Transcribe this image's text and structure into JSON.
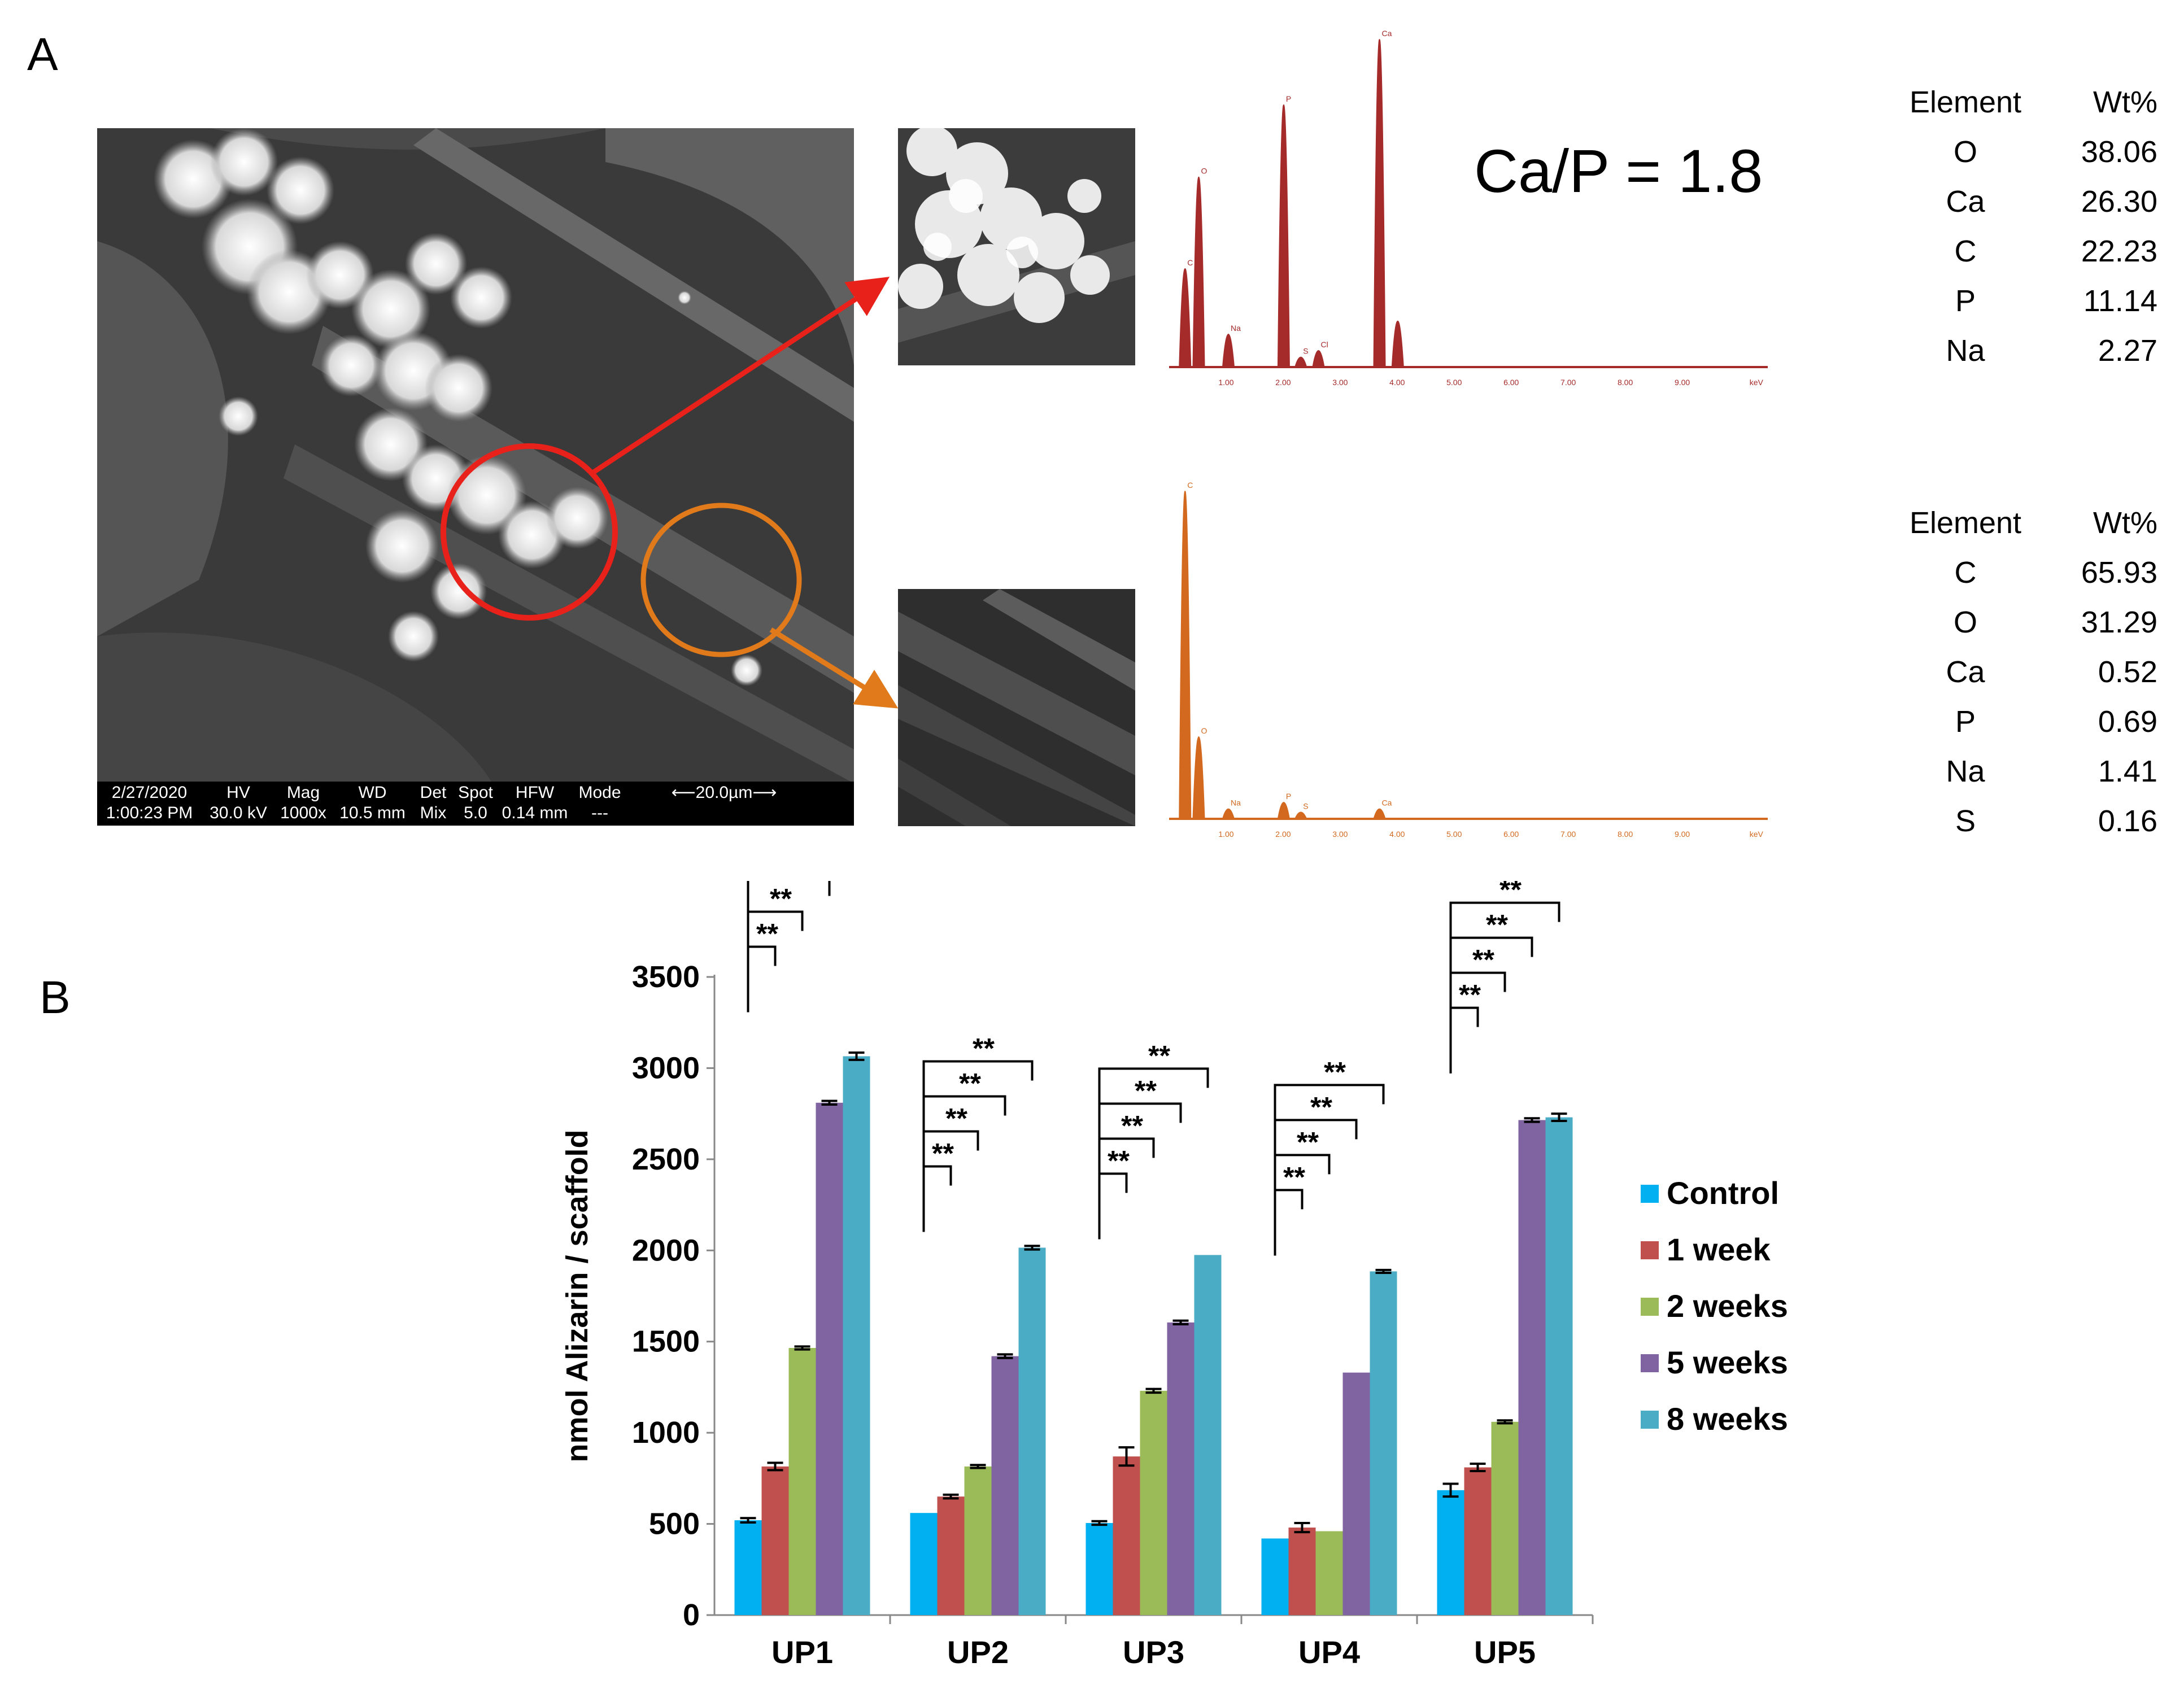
{
  "panel_a": {
    "letter": "A",
    "sem": {
      "info_bar": [
        {
          "top": "2/27/2020",
          "bottom": "1:00:23 PM"
        },
        {
          "top": "HV",
          "bottom": "30.0 kV"
        },
        {
          "top": "Mag",
          "bottom": "1000x"
        },
        {
          "top": "WD",
          "bottom": "10.5 mm"
        },
        {
          "top": "Det",
          "bottom": "Mix"
        },
        {
          "top": "Spot",
          "bottom": "5.0"
        },
        {
          "top": "HFW",
          "bottom": "0.14 mm"
        },
        {
          "top": "Mode",
          "bottom": "---"
        },
        {
          "top": "⟵20.0µm⟶",
          "bottom": ""
        }
      ]
    },
    "ratio_text": "Ca/P = 1.8",
    "spectra": [
      {
        "color": "#a52a2a",
        "x_ticks": [
          "1.00",
          "2.00",
          "3.00",
          "4.00",
          "5.00",
          "6.00",
          "7.00",
          "8.00",
          "9.00",
          "keV"
        ],
        "peaks": [
          {
            "label": "C",
            "kev": 0.28,
            "height": 0.3
          },
          {
            "label": "O",
            "kev": 0.52,
            "height": 0.58
          },
          {
            "label": "Na",
            "kev": 1.04,
            "height": 0.1
          },
          {
            "label": "P",
            "kev": 2.01,
            "height": 0.8
          },
          {
            "label": "S",
            "kev": 2.31,
            "height": 0.03
          },
          {
            "label": "Cl",
            "kev": 2.62,
            "height": 0.05
          },
          {
            "label": "Ca",
            "kev": 3.69,
            "height": 1.0
          },
          {
            "label": "",
            "kev": 4.01,
            "height": 0.14
          }
        ]
      },
      {
        "color": "#d2691e",
        "x_ticks": [
          "1.00",
          "2.00",
          "3.00",
          "4.00",
          "5.00",
          "6.00",
          "7.00",
          "8.00",
          "9.00",
          "keV"
        ],
        "peaks": [
          {
            "label": "C",
            "kev": 0.28,
            "height": 1.0
          },
          {
            "label": "O",
            "kev": 0.52,
            "height": 0.25
          },
          {
            "label": "Na",
            "kev": 1.04,
            "height": 0.03
          },
          {
            "label": "P",
            "kev": 2.01,
            "height": 0.05
          },
          {
            "label": "S",
            "kev": 2.31,
            "height": 0.02
          },
          {
            "label": "Ca",
            "kev": 3.69,
            "height": 0.03
          }
        ]
      }
    ],
    "tables": [
      {
        "headers": [
          "Element",
          "Wt%"
        ],
        "rows": [
          [
            "O",
            "38.06"
          ],
          [
            "Ca",
            "26.30"
          ],
          [
            "C",
            "22.23"
          ],
          [
            "P",
            "11.14"
          ],
          [
            "Na",
            "2.27"
          ]
        ]
      },
      {
        "headers": [
          "Element",
          "Wt%"
        ],
        "rows": [
          [
            "C",
            "65.93"
          ],
          [
            "O",
            "31.29"
          ],
          [
            "Ca",
            "0.52"
          ],
          [
            "P",
            "0.69"
          ],
          [
            "Na",
            "1.41"
          ],
          [
            "S",
            "0.16"
          ]
        ]
      }
    ],
    "highlight_colors": {
      "mineral": "#e8211a",
      "fiber": "#e07a1a"
    }
  },
  "panel_b": {
    "letter": "B"
  },
  "chart_data": {
    "type": "bar",
    "ylabel": "nmol Alizarin / scaffold",
    "ylim": [
      0,
      3500
    ],
    "y_ticks": [
      0,
      500,
      1000,
      1500,
      2000,
      2500,
      3000,
      3500
    ],
    "categories": [
      "UP1",
      "UP2",
      "UP3",
      "UP4",
      "UP5"
    ],
    "legend_position": "right",
    "significance_label": "**",
    "series": [
      {
        "name": "Control",
        "color": "#00b0f0",
        "values": [
          520,
          560,
          505,
          420,
          685
        ],
        "errors": [
          12,
          0,
          10,
          0,
          35
        ]
      },
      {
        "name": "1 week",
        "color": "#c0504d",
        "values": [
          815,
          650,
          870,
          480,
          810
        ],
        "errors": [
          20,
          10,
          50,
          25,
          20
        ]
      },
      {
        "name": "2 weeks",
        "color": "#9bbb59",
        "values": [
          1465,
          815,
          1230,
          460,
          1060
        ],
        "errors": [
          8,
          8,
          10,
          0,
          8
        ]
      },
      {
        "name": "5 weeks",
        "color": "#8064a2",
        "values": [
          2810,
          1420,
          1605,
          1330,
          2715
        ],
        "errors": [
          10,
          10,
          10,
          0,
          10
        ]
      },
      {
        "name": "8 weeks",
        "color": "#4bacc6",
        "values": [
          3065,
          2015,
          1975,
          1885,
          2730
        ],
        "errors": [
          20,
          10,
          0,
          8,
          20
        ]
      }
    ]
  }
}
